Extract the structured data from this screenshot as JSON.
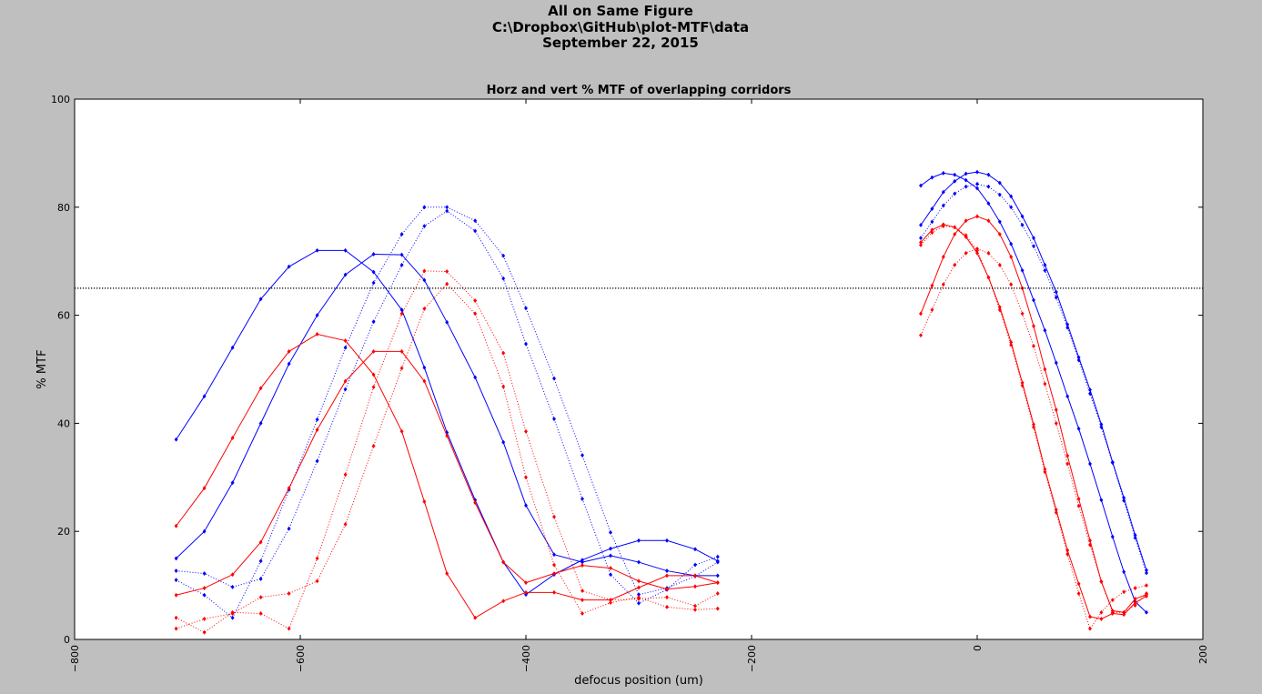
{
  "figure": {
    "title_lines": [
      "All on Same Figure",
      "C:\\Dropbox\\GitHub\\plot-MTF\\data",
      "September 22, 2015"
    ]
  },
  "chart_data": {
    "type": "line",
    "title": "Horz and vert % MTF of overlapping corridors",
    "xlabel": "defocus position (um)",
    "ylabel": "% MTF",
    "xlim": [
      -800,
      200
    ],
    "ylim": [
      0,
      100
    ],
    "xticks": [
      -800,
      -600,
      -400,
      -200,
      0,
      200
    ],
    "yticks": [
      0,
      20,
      40,
      60,
      80,
      100
    ],
    "grid": false,
    "reference_line": {
      "y": 65,
      "style": "dotted",
      "color": "#000000"
    },
    "colors": {
      "blue": "#0000ff",
      "red": "#ff0000"
    },
    "series": [
      {
        "color": "blue",
        "style": "solid",
        "x": [
          -710,
          -685,
          -660,
          -635,
          -610,
          -585,
          -560,
          -535,
          -510
        ],
        "y": [
          37,
          45,
          54,
          63,
          69,
          72,
          72,
          68,
          61
        ]
      },
      {
        "color": "blue",
        "style": "solid",
        "x": [
          -710,
          -685,
          -660,
          -635,
          -610,
          -585,
          -560,
          -535,
          -510,
          -490,
          -470,
          -445,
          -420,
          -400,
          -375,
          -350,
          -325,
          -300,
          -275,
          -250,
          -230
        ],
        "y": [
          15,
          20,
          29,
          40,
          51,
          60,
          67.5,
          71.3,
          71.2,
          66.5,
          58.7,
          48.5,
          36.5,
          24.8,
          15.7,
          14.3,
          15.5,
          14.3,
          12.7,
          11.8,
          11.8
        ]
      },
      {
        "color": "blue",
        "style": "solid",
        "x": [
          -510,
          -490,
          -470,
          -445,
          -420,
          -400,
          -375,
          -350,
          -325,
          -300,
          -275,
          -250,
          -230
        ],
        "y": [
          61,
          50.3,
          38.3,
          25.8,
          14.3,
          8.3,
          12,
          14.7,
          16.8,
          18.3,
          18.3,
          16.7,
          14.5
        ]
      },
      {
        "color": "blue",
        "style": "dotted",
        "x": [
          -710,
          -685,
          -660,
          -635,
          -610,
          -585,
          -560,
          -535,
          -510,
          -490,
          -470,
          -445,
          -420,
          -400,
          -375,
          -350,
          -325,
          -300,
          -275,
          -250,
          -230
        ],
        "y": [
          12.7,
          12.2,
          9.7,
          11.2,
          20.5,
          33,
          46.3,
          58.8,
          69.3,
          76.5,
          79.3,
          75.6,
          66.8,
          54.7,
          40.8,
          26,
          12,
          6.7,
          9.2,
          13.8,
          15.3
        ]
      },
      {
        "color": "blue",
        "style": "dotted",
        "x": [
          -710,
          -685,
          -660,
          -635,
          -610,
          -585,
          -560,
          -535,
          -510,
          -490,
          -470,
          -445,
          -420,
          -400,
          -375,
          -350,
          -325,
          -300,
          -275,
          -250,
          -230
        ],
        "y": [
          11,
          8.2,
          4,
          14.5,
          27.7,
          40.7,
          54,
          66,
          75,
          80,
          80,
          77.5,
          71,
          61.3,
          48.3,
          34.1,
          19.8,
          8.3,
          9.5,
          11.7,
          14.3
        ]
      },
      {
        "color": "red",
        "style": "solid",
        "x": [
          -710,
          -685,
          -660,
          -635,
          -610,
          -585,
          -560,
          -535,
          -510,
          -490,
          -470,
          -445,
          -420,
          -400,
          -375,
          -350,
          -325,
          -300,
          -275,
          -250,
          -230
        ],
        "y": [
          21,
          28,
          37.3,
          46.5,
          53.3,
          56.5,
          55.3,
          49,
          38.5,
          25.5,
          12.2,
          4,
          7.1,
          8.7,
          8.7,
          7.3,
          7.3,
          9.6,
          11.8,
          11.8,
          10.5
        ]
      },
      {
        "color": "red",
        "style": "solid",
        "x": [
          -710,
          -685,
          -660,
          -635,
          -610,
          -585,
          -560,
          -535,
          -510,
          -490,
          -470,
          -445,
          -420,
          -400,
          -375,
          -350,
          -325,
          -300,
          -275,
          -250,
          -230
        ],
        "y": [
          8.2,
          9.5,
          12,
          18,
          28,
          38.8,
          47.8,
          53.3,
          53.3,
          47.8,
          37.7,
          25.3,
          14.3,
          10.5,
          12.2,
          13.7,
          13.2,
          10.8,
          9.3,
          9.8,
          10.5
        ]
      },
      {
        "color": "red",
        "style": "dotted",
        "x": [
          -710,
          -685,
          -660,
          -635,
          -610,
          -585,
          -560,
          -535,
          -510,
          -490,
          -470,
          -445,
          -420,
          -400,
          -375,
          -350,
          -325,
          -300,
          -275,
          -250,
          -230
        ],
        "y": [
          4,
          1.3,
          5,
          4.8,
          2,
          15,
          30.5,
          46.7,
          60.3,
          68.2,
          68.1,
          62.7,
          53,
          38.5,
          22.7,
          9,
          7.3,
          7.5,
          7.8,
          6.2,
          8.5
        ]
      },
      {
        "color": "red",
        "style": "dotted",
        "x": [
          -710,
          -685,
          -660,
          -635,
          -610,
          -585,
          -560,
          -535,
          -510,
          -490,
          -470,
          -445,
          -420,
          -400,
          -375,
          -350,
          -325,
          -300,
          -275,
          -250,
          -230
        ],
        "y": [
          2,
          3.8,
          4.8,
          7.8,
          8.5,
          10.8,
          21.3,
          35.8,
          50.2,
          61.2,
          65.8,
          60.3,
          46.8,
          30,
          13.8,
          4.8,
          6.8,
          7.8,
          6,
          5.5,
          5.7
        ]
      },
      {
        "color": "blue",
        "style": "solid",
        "x": [
          -50,
          -40,
          -30,
          -20,
          -10,
          0,
          10,
          20,
          30,
          40,
          50,
          60,
          70,
          80,
          90,
          100,
          110,
          120,
          130,
          140,
          150
        ],
        "y": [
          84,
          85.5,
          86.3,
          86,
          85,
          83.5,
          80.7,
          77.3,
          73.2,
          68.3,
          62.8,
          57.2,
          51.2,
          45,
          39,
          32.5,
          25.8,
          19,
          12.5,
          7,
          5
        ]
      },
      {
        "color": "blue",
        "style": "solid",
        "x": [
          -50,
          -40,
          -30,
          -20,
          -10,
          0,
          10,
          20,
          30,
          40,
          50,
          60,
          70,
          80,
          90,
          100,
          110,
          120,
          130,
          140,
          150
        ],
        "y": [
          76.7,
          79.7,
          82.8,
          84.8,
          86.2,
          86.5,
          86,
          84.5,
          82,
          78.3,
          74.3,
          69.3,
          64.3,
          58.3,
          52.2,
          46.2,
          39.8,
          32.8,
          26.2,
          19.3,
          12.8
        ]
      },
      {
        "color": "blue",
        "style": "dotted",
        "x": [
          -50,
          -40,
          -30,
          -20,
          -10,
          0,
          10,
          20,
          30,
          40,
          50,
          60,
          70,
          80,
          90,
          100,
          110,
          120,
          130,
          140,
          150
        ],
        "y": [
          74.3,
          77.3,
          80.3,
          82.5,
          83.8,
          84.3,
          83.8,
          82.3,
          80,
          76.7,
          72.8,
          68.3,
          63.3,
          57.7,
          51.7,
          45.5,
          39.3,
          32.7,
          25.7,
          18.8,
          12.3
        ]
      },
      {
        "color": "red",
        "style": "solid",
        "x": [
          -50,
          -40,
          -30,
          -20,
          -10,
          0,
          10,
          20,
          30,
          40,
          50,
          60,
          70,
          80,
          90,
          100,
          110,
          120,
          130,
          140,
          150
        ],
        "y": [
          73.5,
          75.8,
          76.8,
          76.3,
          74.5,
          71.5,
          67,
          61.5,
          55,
          47.5,
          39.8,
          31.5,
          24,
          16.5,
          10.3,
          4.2,
          3.8,
          4.8,
          4.6,
          6.8,
          8
        ]
      },
      {
        "color": "red",
        "style": "solid",
        "x": [
          -50,
          -40,
          -30,
          -20,
          -10,
          0,
          10,
          20,
          30,
          40,
          50,
          60,
          70,
          80,
          90,
          100,
          110,
          120,
          130,
          140,
          150
        ],
        "y": [
          60.3,
          65.5,
          70.8,
          75,
          77.5,
          78.3,
          77.5,
          75,
          70.8,
          65,
          58,
          50,
          42.5,
          34,
          26,
          18.3,
          10.7,
          5.3,
          5,
          7.5,
          8.3
        ]
      },
      {
        "color": "red",
        "style": "dotted",
        "x": [
          -50,
          -40,
          -30,
          -20,
          -10,
          0,
          10,
          20,
          30,
          40,
          50,
          60,
          70,
          80,
          90,
          100,
          110,
          120,
          130,
          140,
          150
        ],
        "y": [
          73,
          75.3,
          76.5,
          76.3,
          74.8,
          72,
          67,
          61,
          54.5,
          47,
          39.3,
          31,
          23.5,
          15.8,
          8.5,
          2,
          5,
          7.3,
          8.8,
          9.5,
          10
        ]
      },
      {
        "color": "red",
        "style": "dotted",
        "x": [
          -50,
          -40,
          -30,
          -20,
          -10,
          0,
          10,
          20,
          30,
          40,
          50,
          60,
          70,
          80,
          90,
          100,
          110,
          120,
          130,
          140,
          150
        ],
        "y": [
          56.3,
          61,
          65.7,
          69.3,
          71.5,
          72.3,
          71.5,
          69.3,
          65.7,
          60.3,
          54.3,
          47.3,
          40,
          32.5,
          24.7,
          17.5,
          10.7,
          5,
          5,
          6.3,
          8.5
        ]
      }
    ]
  }
}
